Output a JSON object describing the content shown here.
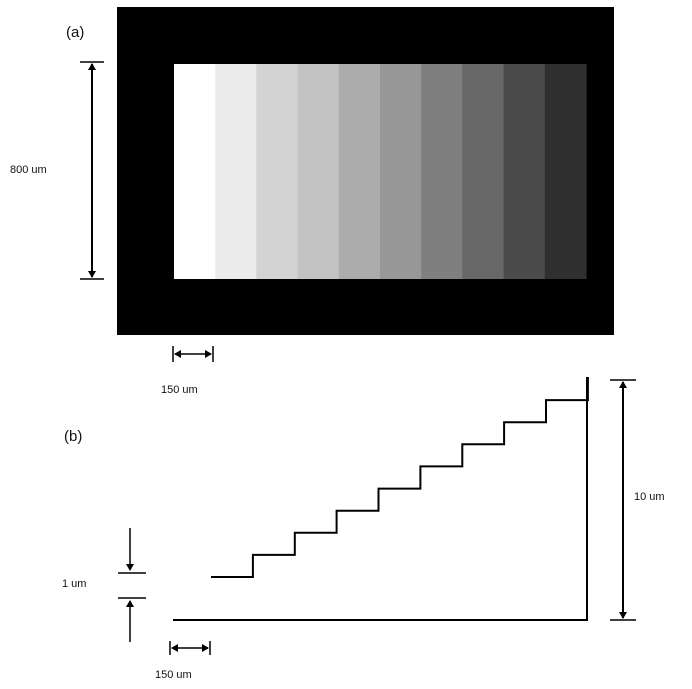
{
  "panel_a": {
    "label": "(a)",
    "height_label": "800 um",
    "step_width_label": "150 um",
    "colors": {
      "frame": "#000000"
    },
    "step_shades": [
      "#ffffff",
      "#ebebeb",
      "#d3d3d3",
      "#c2c2c2",
      "#acacac",
      "#979797",
      "#7f7f7f",
      "#676767",
      "#4b4b4b",
      "#2f2f2f"
    ]
  },
  "panel_b": {
    "label": "(b)",
    "total_height_label": "10 um",
    "step_height_label": "1 um",
    "step_width_label": "150 um",
    "step_count": 10
  }
}
